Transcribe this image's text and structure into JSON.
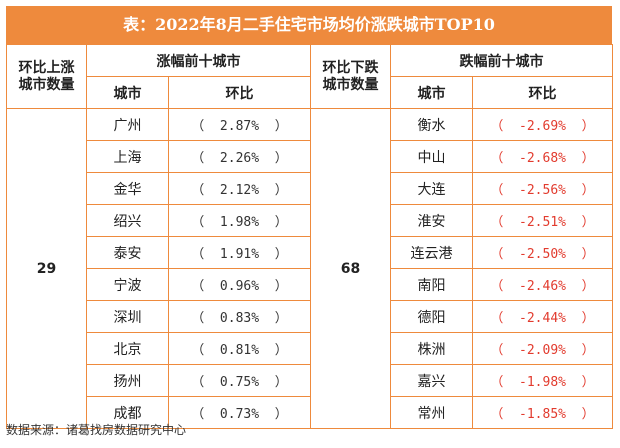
{
  "title": "表：2022年8月二手住宅市场均价涨跌城市TOP10",
  "headers": {
    "up_group": "环比上涨城市数量",
    "up_top": "涨幅前十城市",
    "down_group": "环比下跌城市数量",
    "down_top": "跌幅前十城市",
    "city": "城市",
    "mom": "环比"
  },
  "up_count": "29",
  "down_count": "68",
  "up_rows": [
    {
      "city": "广州",
      "value": "（  2.87%  ）"
    },
    {
      "city": "上海",
      "value": "（  2.26%  ）"
    },
    {
      "city": "金华",
      "value": "（  2.12%  ）"
    },
    {
      "city": "绍兴",
      "value": "（  1.98%  ）"
    },
    {
      "city": "泰安",
      "value": "（  1.91%  ）"
    },
    {
      "city": "宁波",
      "value": "（  0.96%  ）"
    },
    {
      "city": "深圳",
      "value": "（  0.83%  ）"
    },
    {
      "city": "北京",
      "value": "（  0.81%  ）"
    },
    {
      "city": "扬州",
      "value": "（  0.75%  ）"
    },
    {
      "city": "成都",
      "value": "（  0.73%  ）"
    }
  ],
  "down_rows": [
    {
      "city": "衡水",
      "value": "（  -2.69%  ）"
    },
    {
      "city": "中山",
      "value": "（  -2.68%  ）"
    },
    {
      "city": "大连",
      "value": "（  -2.56%  ）"
    },
    {
      "city": "淮安",
      "value": "（  -2.51%  ）"
    },
    {
      "city": "连云港",
      "value": "（  -2.50%  ）"
    },
    {
      "city": "南阳",
      "value": "（  -2.46%  ）"
    },
    {
      "city": "德阳",
      "value": "（  -2.44%  ）"
    },
    {
      "city": "株洲",
      "value": "（  -2.09%  ）"
    },
    {
      "city": "嘉兴",
      "value": "（  -1.98%  ）"
    },
    {
      "city": "常州",
      "value": "（  -1.85%  ）"
    }
  ],
  "source": "数据来源：诸葛找房数据研究中心",
  "colors": {
    "accent": "#ee8a3d",
    "negative": "#e23b2e"
  }
}
